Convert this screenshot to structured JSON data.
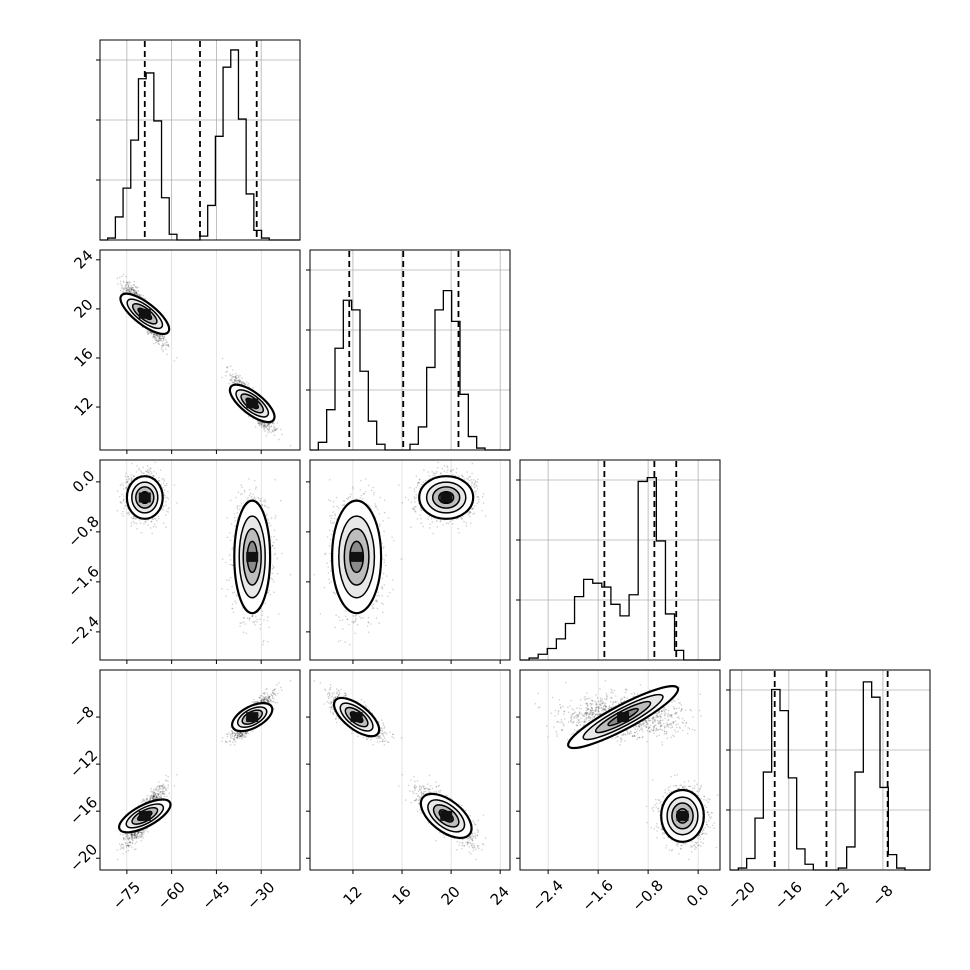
{
  "chart_data": {
    "type": "corner",
    "params": [
      {
        "range": [
          -84,
          -17
        ],
        "xticks": [
          -75,
          -60,
          -45,
          -30
        ],
        "yticks": [
          -20,
          -16,
          -12,
          -8
        ],
        "quantiles": [
          -69,
          -50.5,
          -31.5
        ],
        "hist_edges_count": 27,
        "hist_counts": [
          0.0,
          0.01,
          0.12,
          0.27,
          0.52,
          0.84,
          0.87,
          0.62,
          0.22,
          0.03,
          0.0,
          0.0,
          0.0,
          0.02,
          0.18,
          0.54,
          0.9,
          0.99,
          0.63,
          0.24,
          0.05,
          0.01,
          0.0,
          0.0,
          0.0,
          0.0
        ]
      },
      {
        "range": [
          8.5,
          24.8
        ],
        "xticks": [
          12,
          16,
          20,
          24
        ],
        "yticks": [
          12,
          16,
          20,
          24
        ],
        "quantiles": [
          11.7,
          16.1,
          20.6
        ],
        "hist_edges_count": 25,
        "hist_counts": [
          0.0,
          0.04,
          0.21,
          0.53,
          0.78,
          0.73,
          0.41,
          0.15,
          0.03,
          0.0,
          0.0,
          0.0,
          0.03,
          0.12,
          0.43,
          0.73,
          0.83,
          0.67,
          0.29,
          0.07,
          0.01,
          0.0,
          0.0,
          0.0
        ]
      },
      {
        "range": [
          -2.85,
          0.35
        ],
        "xticks": [
          -2.4,
          -1.6,
          -0.8,
          0.0
        ],
        "yticks": [
          -2.4,
          -1.6,
          -0.8,
          0.0
        ],
        "quantiles": [
          -1.5,
          -0.7,
          -0.35
        ],
        "hist_edges_count": 23,
        "hist_counts": [
          0.0,
          0.01,
          0.03,
          0.06,
          0.11,
          0.19,
          0.33,
          0.42,
          0.4,
          0.38,
          0.29,
          0.23,
          0.34,
          0.93,
          0.95,
          0.62,
          0.24,
          0.05,
          0.0,
          0.0,
          0.0,
          0.0
        ]
      },
      {
        "range": [
          -21,
          -4
        ],
        "xticks": [
          -20,
          -16,
          -12,
          -8
        ],
        "yticks": [
          -20,
          -16,
          -12,
          -8
        ],
        "quantiles": [
          -17.2,
          -12.8,
          -7.6
        ],
        "hist_edges_count": 25,
        "hist_counts": [
          0.0,
          0.01,
          0.06,
          0.27,
          0.51,
          0.94,
          0.83,
          0.48,
          0.11,
          0.03,
          0.0,
          0.0,
          0.0,
          0.01,
          0.12,
          0.51,
          0.98,
          0.9,
          0.43,
          0.08,
          0.01,
          0.0,
          0.0,
          0.0
        ]
      }
    ],
    "modes": [
      {
        "p0": -69,
        "p1": 19.6,
        "p2": -0.25,
        "p3": -16.4,
        "s0": 3.0,
        "s1": 1.1,
        "s2": 0.17,
        "s3": 1.1
      },
      {
        "p0": -33,
        "p1": 12.3,
        "p2": -1.2,
        "p3": -8.0,
        "s0": 3.0,
        "s1": 1.0,
        "s2": 0.45,
        "s3": 0.85
      }
    ],
    "grid": true,
    "legend": "none"
  }
}
